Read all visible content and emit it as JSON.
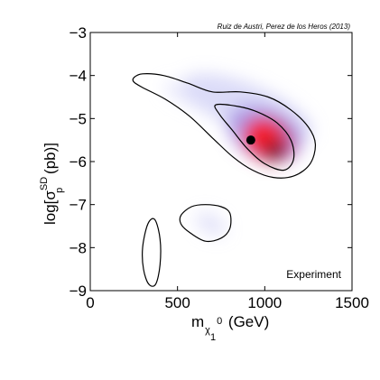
{
  "chart_data": {
    "type": "contour",
    "citation": "Ruiz de Austri, Perez de los Heros (2013)",
    "label": "Experiment",
    "xlabel": {
      "main": "m",
      "sub": "χ",
      "subsub": "1",
      "sup": "0",
      "unit": " (GeV)"
    },
    "ylabel": {
      "prefix": "log[σ",
      "sup": "SD",
      "sub": "p",
      "suffix": " (pb)]"
    },
    "xlim": [
      0,
      1500
    ],
    "ylim": [
      -9,
      -3
    ],
    "xticks": [
      "0",
      "500",
      "1000",
      "1500"
    ],
    "yticks": [
      "−9",
      "−8",
      "−7",
      "−6",
      "−5",
      "−4",
      "−3"
    ],
    "best_fit": {
      "x": 920,
      "y": -5.5
    },
    "regions": [
      {
        "name": "main-contour",
        "points": [
          [
            250,
            -4.05
          ],
          [
            300,
            -3.96
          ],
          [
            420,
            -4.0
          ],
          [
            560,
            -4.18
          ],
          [
            700,
            -4.38
          ],
          [
            860,
            -4.38
          ],
          [
            1020,
            -4.5
          ],
          [
            1150,
            -4.8
          ],
          [
            1250,
            -5.2
          ],
          [
            1290,
            -5.6
          ],
          [
            1260,
            -6.05
          ],
          [
            1170,
            -6.33
          ],
          [
            1050,
            -6.37
          ],
          [
            930,
            -6.2
          ],
          [
            820,
            -5.9
          ],
          [
            700,
            -5.45
          ],
          [
            570,
            -4.95
          ],
          [
            430,
            -4.55
          ],
          [
            300,
            -4.28
          ],
          [
            250,
            -4.15
          ]
        ]
      },
      {
        "name": "inner-contour",
        "points": [
          [
            720,
            -4.68
          ],
          [
            850,
            -4.72
          ],
          [
            960,
            -4.85
          ],
          [
            1070,
            -5.1
          ],
          [
            1150,
            -5.5
          ],
          [
            1165,
            -5.95
          ],
          [
            1110,
            -6.2
          ],
          [
            1000,
            -6.05
          ],
          [
            900,
            -5.7
          ],
          [
            810,
            -5.25
          ],
          [
            740,
            -4.9
          ]
        ]
      },
      {
        "name": "island-middle",
        "points": [
          [
            520,
            -7.25
          ],
          [
            580,
            -7.05
          ],
          [
            660,
            -7.0
          ],
          [
            750,
            -7.05
          ],
          [
            800,
            -7.2
          ],
          [
            800,
            -7.55
          ],
          [
            750,
            -7.78
          ],
          [
            660,
            -7.85
          ],
          [
            570,
            -7.65
          ],
          [
            520,
            -7.45
          ]
        ]
      },
      {
        "name": "island-left",
        "points": [
          [
            300,
            -8.0
          ],
          [
            330,
            -7.45
          ],
          [
            370,
            -7.35
          ],
          [
            400,
            -7.8
          ],
          [
            400,
            -8.4
          ],
          [
            375,
            -8.85
          ],
          [
            335,
            -8.85
          ],
          [
            305,
            -8.5
          ]
        ]
      }
    ],
    "density_blobs": [
      {
        "x": 900,
        "y": -4.75,
        "rx": 400,
        "ry": 0.55,
        "color": "#b8b8f2",
        "opacity": 0.5
      },
      {
        "x": 620,
        "y": -4.55,
        "rx": 220,
        "ry": 0.22,
        "color": "#dadaf8",
        "opacity": 0.6
      },
      {
        "x": 1000,
        "y": -5.35,
        "rx": 230,
        "ry": 0.6,
        "color": "#8a6ad8",
        "opacity": 0.55
      },
      {
        "x": 1020,
        "y": -5.5,
        "rx": 150,
        "ry": 0.5,
        "color": "#d02b55",
        "opacity": 0.8
      },
      {
        "x": 990,
        "y": -5.4,
        "rx": 100,
        "ry": 0.35,
        "color": "#ff1a1a",
        "opacity": 0.85
      },
      {
        "x": 1060,
        "y": -5.75,
        "rx": 55,
        "ry": 0.2,
        "color": "#1a0000",
        "opacity": 0.75
      },
      {
        "x": 690,
        "y": -7.45,
        "rx": 95,
        "ry": 0.22,
        "color": "#c8c8f4",
        "opacity": 0.5
      }
    ],
    "colors": {
      "contour": "#000000",
      "best_fit": "#000000"
    }
  }
}
